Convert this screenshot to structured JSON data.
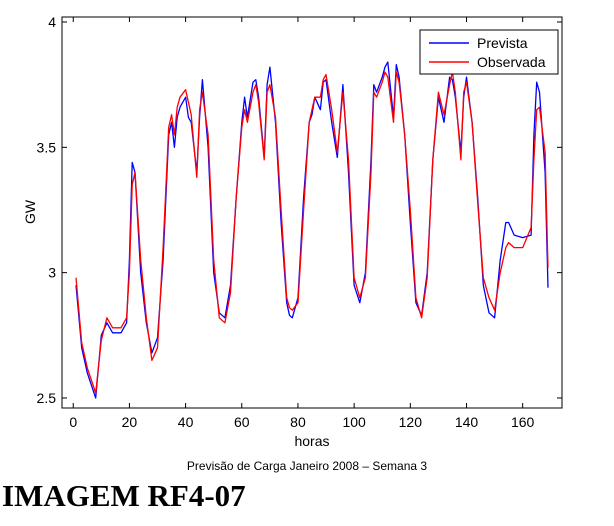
{
  "chart_data": {
    "type": "line",
    "xlabel": "horas",
    "ylabel": "GW",
    "xlim": [
      -4,
      174
    ],
    "ylim": [
      2.46,
      4.02
    ],
    "xticks": [
      0,
      20,
      40,
      60,
      80,
      100,
      120,
      140,
      160
    ],
    "yticks": [
      2.5,
      3,
      3.5,
      4
    ],
    "ytick_labels": [
      "2.5",
      "3",
      "3.5",
      "4"
    ],
    "legend_position": "top-right",
    "series": [
      {
        "name": "Prevista",
        "color": "#0000ff",
        "x": [
          1,
          3,
          5,
          8,
          10,
          12,
          14,
          17,
          19,
          20,
          21,
          22,
          24,
          26,
          28,
          30,
          32,
          34,
          35,
          36,
          37,
          38,
          40,
          41,
          42,
          44,
          45,
          46,
          48,
          50,
          52,
          54,
          56,
          58,
          60,
          61,
          62,
          64,
          65,
          66,
          68,
          69,
          70,
          72,
          74,
          76,
          77,
          78,
          80,
          82,
          84,
          85,
          86,
          88,
          89,
          90,
          92,
          94,
          96,
          98,
          100,
          102,
          104,
          106,
          107,
          108,
          110,
          111,
          112,
          114,
          115,
          116,
          118,
          120,
          122,
          124,
          126,
          128,
          130,
          132,
          134,
          135,
          136,
          138,
          139,
          140,
          142,
          144,
          146,
          148,
          150,
          152,
          154,
          155,
          157,
          160,
          163,
          164,
          165,
          166,
          168,
          169
        ],
        "y": [
          2.95,
          2.7,
          2.6,
          2.5,
          2.75,
          2.8,
          2.76,
          2.76,
          2.8,
          3.05,
          3.44,
          3.4,
          3.0,
          2.8,
          2.68,
          2.74,
          3.05,
          3.55,
          3.6,
          3.5,
          3.62,
          3.66,
          3.7,
          3.62,
          3.6,
          3.4,
          3.62,
          3.77,
          3.5,
          3.0,
          2.84,
          2.82,
          2.95,
          3.3,
          3.6,
          3.7,
          3.62,
          3.76,
          3.77,
          3.7,
          3.46,
          3.75,
          3.82,
          3.6,
          3.2,
          2.88,
          2.83,
          2.82,
          2.9,
          3.3,
          3.6,
          3.63,
          3.7,
          3.65,
          3.76,
          3.77,
          3.6,
          3.46,
          3.75,
          3.4,
          2.95,
          2.88,
          3.0,
          3.45,
          3.75,
          3.72,
          3.78,
          3.82,
          3.84,
          3.62,
          3.83,
          3.78,
          3.55,
          3.2,
          2.88,
          2.83,
          3.0,
          3.45,
          3.7,
          3.6,
          3.78,
          3.77,
          3.7,
          3.48,
          3.7,
          3.78,
          3.6,
          3.3,
          2.95,
          2.84,
          2.82,
          3.05,
          3.2,
          3.2,
          3.15,
          3.14,
          3.15,
          3.55,
          3.76,
          3.72,
          3.4,
          2.94
        ]
      },
      {
        "name": "Observada",
        "color": "#ff0000",
        "x": [
          1,
          3,
          5,
          8,
          10,
          12,
          14,
          17,
          19,
          20,
          21,
          22,
          24,
          26,
          28,
          30,
          32,
          34,
          35,
          36,
          37,
          38,
          40,
          41,
          42,
          44,
          45,
          46,
          48,
          50,
          52,
          54,
          56,
          58,
          60,
          61,
          62,
          64,
          65,
          66,
          68,
          69,
          70,
          72,
          74,
          76,
          77,
          78,
          80,
          82,
          84,
          85,
          86,
          88,
          89,
          90,
          92,
          94,
          96,
          98,
          100,
          102,
          104,
          106,
          107,
          108,
          110,
          111,
          112,
          114,
          115,
          116,
          118,
          120,
          122,
          124,
          126,
          128,
          130,
          132,
          134,
          135,
          136,
          138,
          139,
          140,
          142,
          144,
          146,
          148,
          150,
          152,
          154,
          155,
          157,
          160,
          163,
          164,
          165,
          166,
          168,
          169
        ],
        "y": [
          2.98,
          2.72,
          2.62,
          2.52,
          2.73,
          2.82,
          2.78,
          2.78,
          2.82,
          3.0,
          3.35,
          3.4,
          3.05,
          2.82,
          2.65,
          2.7,
          3.1,
          3.58,
          3.63,
          3.55,
          3.66,
          3.7,
          3.73,
          3.68,
          3.63,
          3.38,
          3.65,
          3.72,
          3.55,
          3.05,
          2.82,
          2.8,
          2.92,
          3.3,
          3.58,
          3.65,
          3.6,
          3.72,
          3.75,
          3.68,
          3.45,
          3.72,
          3.75,
          3.62,
          3.25,
          2.9,
          2.86,
          2.85,
          2.88,
          3.25,
          3.6,
          3.65,
          3.7,
          3.7,
          3.77,
          3.79,
          3.65,
          3.48,
          3.72,
          3.45,
          2.98,
          2.9,
          2.98,
          3.4,
          3.72,
          3.7,
          3.76,
          3.8,
          3.78,
          3.6,
          3.8,
          3.76,
          3.55,
          3.25,
          2.9,
          2.82,
          2.98,
          3.45,
          3.72,
          3.63,
          3.75,
          3.8,
          3.72,
          3.45,
          3.72,
          3.76,
          3.6,
          3.28,
          2.98,
          2.9,
          2.85,
          3.0,
          3.1,
          3.12,
          3.1,
          3.1,
          3.18,
          3.45,
          3.65,
          3.66,
          3.48,
          3.02
        ]
      }
    ]
  },
  "caption": "Previsão de Carga Janeiro 2008 – Semana 3",
  "heading": "IMAGEM RF4-07"
}
